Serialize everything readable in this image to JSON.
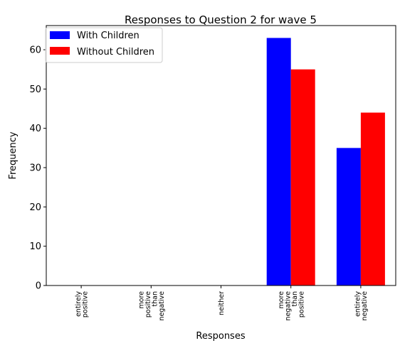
{
  "chart_data": {
    "type": "bar",
    "title": "Responses to Question 2 for wave 5",
    "xlabel": "Responses",
    "ylabel": "Frequency",
    "categories": [
      [
        "entirely",
        "positive"
      ],
      [
        "more",
        "positive",
        "than",
        "negative"
      ],
      [
        "neither"
      ],
      [
        "more",
        "negative",
        "than",
        "positive"
      ],
      [
        "entirely",
        "negative"
      ]
    ],
    "series": [
      {
        "name": "With Children",
        "color": "#0000ff",
        "values": [
          0,
          0,
          0,
          63,
          35
        ]
      },
      {
        "name": "Without Children",
        "color": "#ff0000",
        "values": [
          0,
          0,
          0,
          55,
          44
        ]
      }
    ],
    "ylim": [
      0,
      66.15
    ],
    "yticks": [
      "0",
      "10",
      "20",
      "30",
      "40",
      "50",
      "60"
    ],
    "legend_position": "top-left",
    "grid": false
  }
}
